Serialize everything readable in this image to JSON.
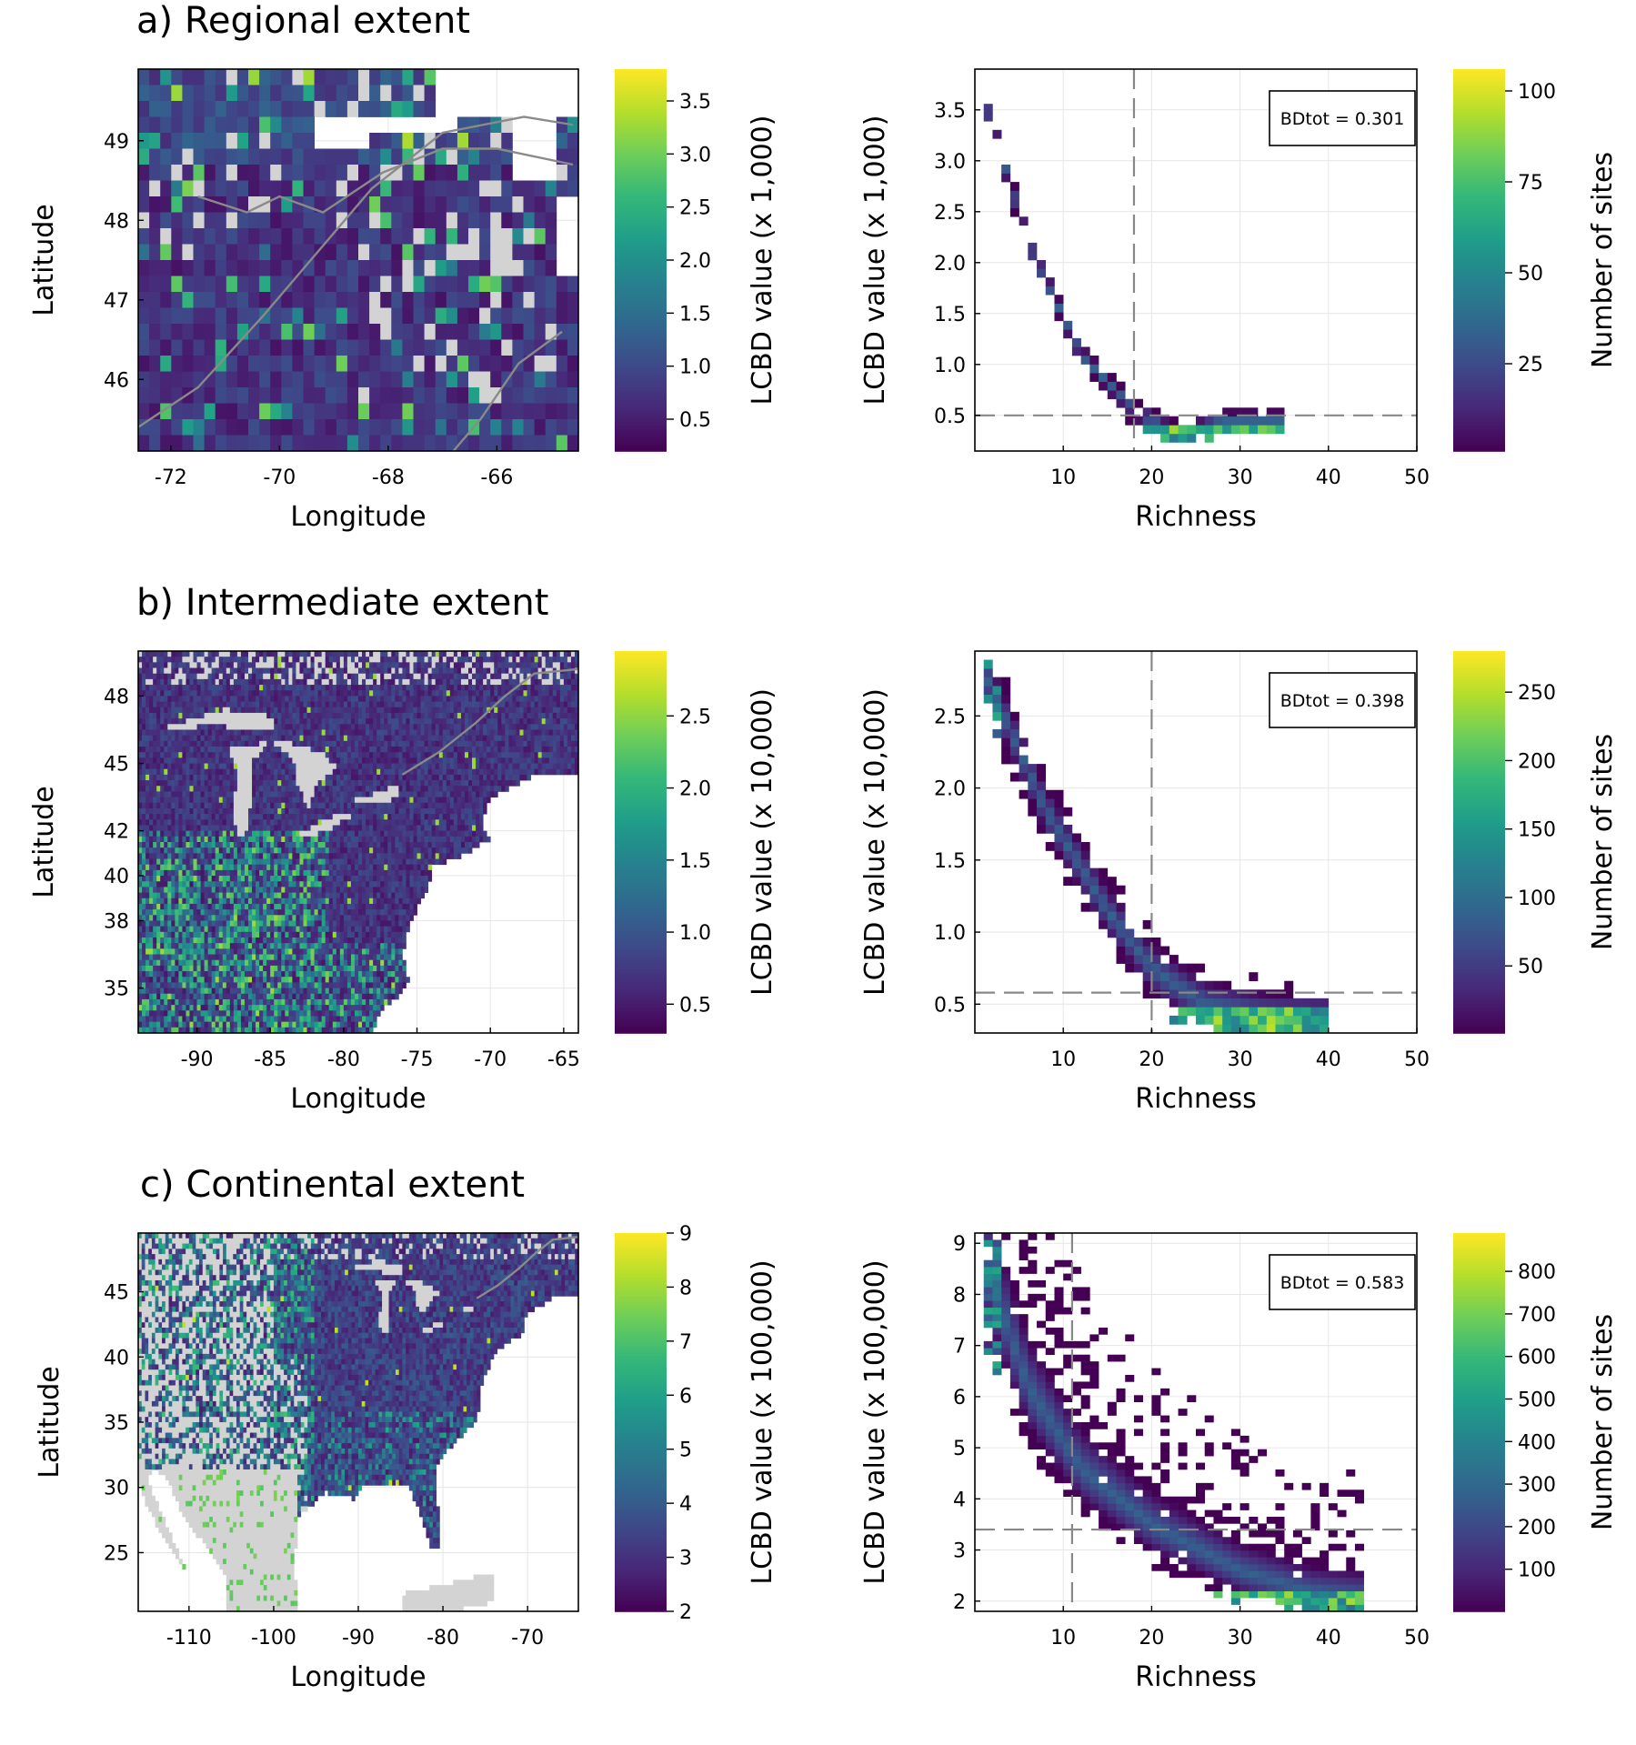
{
  "panels": [
    {
      "id": "a",
      "title": "a) Regional extent",
      "map": {
        "xlabel": "Longitude",
        "ylabel": "Latitude",
        "xlim": [
          -72.6,
          -64.5
        ],
        "ylim": [
          45.1,
          49.9
        ],
        "xticks": [
          -72,
          -70,
          -68,
          -66
        ],
        "yticks": [
          46,
          47,
          48,
          49
        ],
        "grid_cols": 40,
        "grid_rows": 24,
        "value_range": [
          0.2,
          3.8
        ],
        "colorbar": {
          "label": "LCBD value (x 1,000)",
          "range": [
            0.2,
            3.8
          ],
          "ticks": [
            0.5,
            1.0,
            1.5,
            2.0,
            2.5,
            3.0,
            3.5
          ]
        }
      },
      "chart_data": {
        "type": "heatmap",
        "xlabel": "Richness",
        "ylabel": "LCBD value (x 1,000)",
        "xlim": [
          0,
          50
        ],
        "ylim": [
          0.15,
          3.9
        ],
        "xticks": [
          10,
          20,
          30,
          40,
          50
        ],
        "yticks": [
          0.5,
          1.0,
          1.5,
          2.0,
          2.5,
          3.0,
          3.5
        ],
        "vline": 18,
        "hline": 0.5,
        "annotation": "BDtot = 0.301",
        "annotation_position": "top-right",
        "count_range": [
          1,
          106
        ],
        "colorbar": {
          "label": "Number of sites",
          "ticks": [
            25,
            50,
            75,
            100
          ]
        },
        "trend": {
          "x": [
            0,
            6,
            12,
            18,
            23,
            28
          ],
          "y": [
            3.9,
            2.2,
            1.1,
            0.55,
            0.3,
            0.45
          ]
        }
      }
    },
    {
      "id": "b",
      "title": "b) Intermediate extent",
      "map": {
        "xlabel": "Longitude",
        "ylabel": "Latitude",
        "xlim": [
          -94,
          -64
        ],
        "ylim": [
          33,
          50
        ],
        "xticks": [
          -90,
          -85,
          -80,
          -75,
          -70,
          -65
        ],
        "yticks": [
          35,
          38,
          40,
          42,
          45,
          48
        ],
        "grid_cols": 120,
        "grid_rows": 68,
        "value_range": [
          0.3,
          2.95
        ],
        "colorbar": {
          "label": "LCBD value (x 10,000)",
          "range": [
            0.3,
            2.95
          ],
          "ticks": [
            0.5,
            1.0,
            1.5,
            2.0,
            2.5
          ]
        }
      },
      "chart_data": {
        "type": "heatmap",
        "xlabel": "Richness",
        "ylabel": "LCBD value (x 10,000)",
        "xlim": [
          0,
          50
        ],
        "ylim": [
          0.3,
          2.95
        ],
        "xticks": [
          10,
          20,
          30,
          40,
          50
        ],
        "yticks": [
          0.5,
          1.0,
          1.5,
          2.0,
          2.5
        ],
        "vline": 20,
        "hline": 0.58,
        "annotation": "BDtot = 0.398",
        "annotation_position": "top-right",
        "count_range": [
          1,
          280
        ],
        "colorbar": {
          "label": "Number of sites",
          "ticks": [
            50,
            100,
            150,
            200,
            250
          ]
        },
        "trend": {
          "x": [
            0,
            8,
            15,
            20,
            26,
            33,
            40
          ],
          "y": [
            2.95,
            1.85,
            1.15,
            0.75,
            0.5,
            0.42,
            0.4
          ]
        }
      }
    },
    {
      "id": "c",
      "title": "c) Continental extent",
      "map": {
        "xlabel": "Longitude",
        "ylabel": "Latitude",
        "xlim": [
          -116,
          -64
        ],
        "ylim": [
          20.5,
          49.5
        ],
        "xticks": [
          -110,
          -100,
          -90,
          -80,
          -70
        ],
        "yticks": [
          25,
          30,
          35,
          40,
          45
        ],
        "grid_cols": 130,
        "grid_rows": 72,
        "value_range": [
          2,
          9
        ],
        "colorbar": {
          "label": "LCBD value (x 100,000)",
          "range": [
            2,
            9
          ],
          "ticks": [
            2,
            3,
            4,
            5,
            6,
            7,
            8,
            9
          ]
        }
      },
      "chart_data": {
        "type": "heatmap",
        "xlabel": "Richness",
        "ylabel": "LCBD value (x 100,000)",
        "xlim": [
          0,
          50
        ],
        "ylim": [
          1.8,
          9.2
        ],
        "xticks": [
          10,
          20,
          30,
          40,
          50
        ],
        "yticks": [
          2,
          3,
          4,
          5,
          6,
          7,
          8,
          9
        ],
        "vline": 11,
        "hline": 3.4,
        "annotation": "BDtot = 0.583",
        "annotation_position": "top-right",
        "count_range": [
          1,
          890
        ],
        "colorbar": {
          "label": "Number of sites",
          "ticks": [
            100,
            200,
            300,
            400,
            500,
            600,
            700,
            800
          ]
        },
        "trend": {
          "x": [
            0,
            6,
            12,
            20,
            30,
            38,
            44
          ],
          "y": [
            9.2,
            6.2,
            4.6,
            3.5,
            2.6,
            2.2,
            2.1
          ]
        }
      }
    }
  ],
  "colors": {
    "viridis": [
      "#440154",
      "#482878",
      "#3e4989",
      "#31688e",
      "#26828e",
      "#1f9e89",
      "#35b779",
      "#6ece58",
      "#b5de2b",
      "#fde725"
    ],
    "nodata": "#d3d3d3",
    "reference_lines": "#888888",
    "coastline": "#8a8a8a"
  }
}
